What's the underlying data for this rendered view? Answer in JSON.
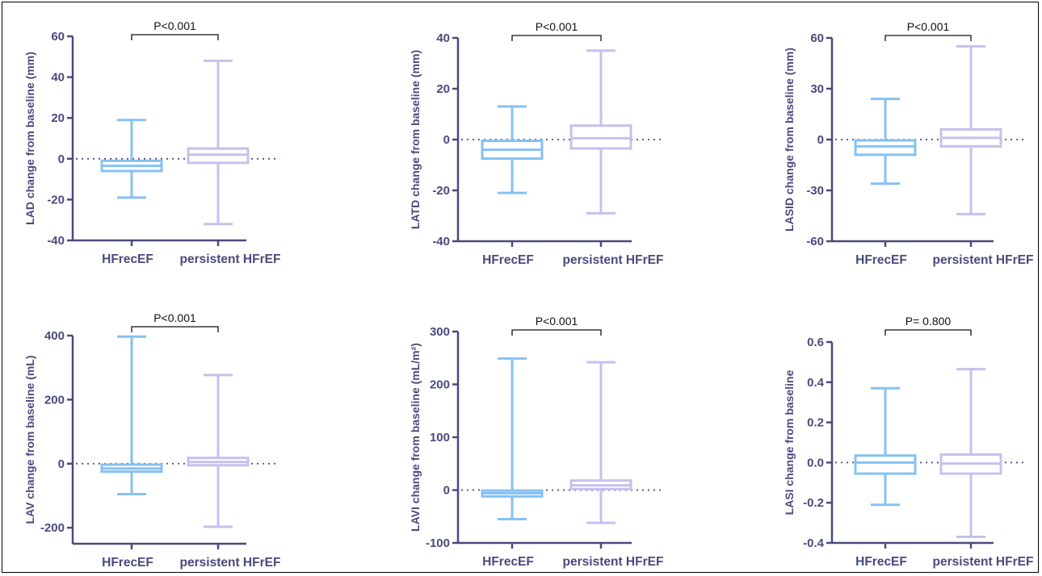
{
  "chart_data": [
    {
      "type": "box",
      "ylabel": "LAD change from baseline (mm)",
      "ylim": [
        -40,
        60
      ],
      "yticks": [
        "60",
        "40",
        "20",
        "0",
        "-20",
        "-40"
      ],
      "yticks_num": [
        60,
        40,
        20,
        0,
        -20,
        -40
      ],
      "categories": [
        "HFrecEF",
        "persistent HFrEF"
      ],
      "boxes": [
        {
          "min": -19,
          "q1": -6,
          "median": -3.5,
          "q3": -1,
          "max": 19
        },
        {
          "min": -32,
          "q1": -2,
          "median": 2,
          "q3": 5,
          "max": 48
        }
      ],
      "p_label": "P<0.001"
    },
    {
      "type": "box",
      "ylabel": "LATD change from baseline (mm)",
      "ylim": [
        -40,
        40
      ],
      "yticks": [
        "40",
        "20",
        "0",
        "-20",
        "-40"
      ],
      "yticks_num": [
        40,
        20,
        0,
        -20,
        -40
      ],
      "categories": [
        "HFrecEF",
        "persistent HFrEF"
      ],
      "boxes": [
        {
          "min": -21,
          "q1": -7.5,
          "median": -4,
          "q3": -0.5,
          "max": 13
        },
        {
          "min": -29,
          "q1": -3.5,
          "median": 0.5,
          "q3": 5.5,
          "max": 35
        }
      ],
      "p_label": "P<0.001"
    },
    {
      "type": "box",
      "ylabel": "LASID change from baseline (mm)",
      "ylim": [
        -60,
        60
      ],
      "yticks": [
        "60",
        "30",
        "0",
        "-30",
        "-60"
      ],
      "yticks_num": [
        60,
        30,
        0,
        -30,
        -60
      ],
      "categories": [
        "HFrecEF",
        "persistent HFrEF"
      ],
      "boxes": [
        {
          "min": -26,
          "q1": -9,
          "median": -4,
          "q3": -0.5,
          "max": 24
        },
        {
          "min": -44,
          "q1": -4,
          "median": 1,
          "q3": 6,
          "max": 55
        }
      ],
      "p_label": "P<0.001"
    },
    {
      "type": "box",
      "ylabel": "LAV change from baseline (mL)",
      "ylim": [
        -250,
        400
      ],
      "yticks": [
        "400",
        "200",
        "0",
        "-200"
      ],
      "yticks_num": [
        400,
        200,
        0,
        -200
      ],
      "categories": [
        "HFrecEF",
        "persistent HFrEF"
      ],
      "boxes": [
        {
          "min": -95,
          "q1": -25,
          "median": -15,
          "q3": -3,
          "max": 397
        },
        {
          "min": -197,
          "q1": -5,
          "median": 5,
          "q3": 18,
          "max": 277
        }
      ],
      "p_label": "P<0.001"
    },
    {
      "type": "box",
      "ylabel": "LAVI change from baseline (mL/m²)",
      "ylim": [
        -100,
        300
      ],
      "yticks": [
        "300",
        "200",
        "100",
        "0",
        "-100"
      ],
      "yticks_num": [
        300,
        200,
        100,
        0,
        -100
      ],
      "categories": [
        "HFrecEF",
        "persistent HFrEF"
      ],
      "boxes": [
        {
          "min": -55,
          "q1": -12,
          "median": -6,
          "q3": -1,
          "max": 249
        },
        {
          "min": -62,
          "q1": 2,
          "median": 9,
          "q3": 18,
          "max": 242
        }
      ],
      "p_label": "P<0.001"
    },
    {
      "type": "box",
      "ylabel": "LASI change from baseline",
      "ylim": [
        -0.4,
        0.6
      ],
      "yticks": [
        "0.6",
        "0.4",
        "0.2",
        "0.0",
        "-0.2",
        "-0.4"
      ],
      "yticks_num": [
        0.6,
        0.4,
        0.2,
        0.0,
        -0.2,
        -0.4
      ],
      "categories": [
        "HFrecEF",
        "persistent HFrEF"
      ],
      "boxes": [
        {
          "min": -0.21,
          "q1": -0.055,
          "median": 0.0,
          "q3": 0.035,
          "max": 0.37
        },
        {
          "min": -0.37,
          "q1": -0.055,
          "median": -0.005,
          "q3": 0.04,
          "max": 0.465
        }
      ],
      "p_label": "P= 0.800"
    }
  ],
  "colors": {
    "HFrecEF": "#86c1f2",
    "persistent HFrEF": "#c6c0ec",
    "axis": "#4a4a7e"
  }
}
